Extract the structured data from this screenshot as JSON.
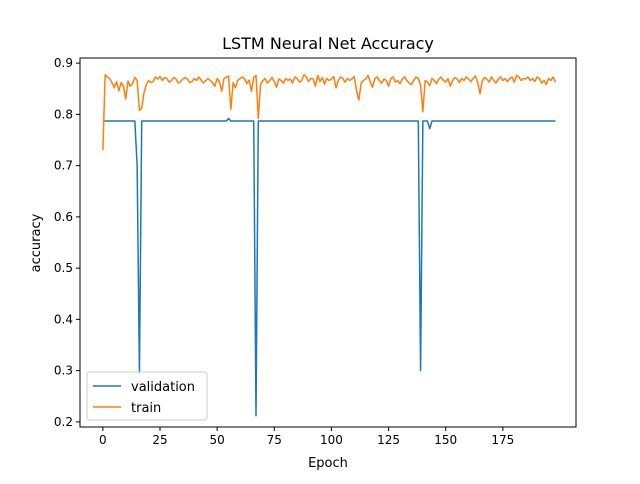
{
  "chart_data": {
    "type": "line",
    "title": "LSTM Neural Net Accuracy",
    "xlabel": "Epoch",
    "ylabel": "accuracy",
    "xlim": [
      -10,
      207
    ],
    "ylim": [
      0.19,
      0.91
    ],
    "xticks": [
      0,
      25,
      50,
      75,
      100,
      125,
      150,
      175
    ],
    "yticks": [
      0.2,
      0.3,
      0.4,
      0.5,
      0.6,
      0.7,
      0.8,
      0.9
    ],
    "xtick_labels": [
      "0",
      "25",
      "50",
      "75",
      "100",
      "125",
      "150",
      "175"
    ],
    "ytick_labels": [
      "0.2",
      "0.3",
      "0.4",
      "0.5",
      "0.6",
      "0.7",
      "0.8",
      "0.9"
    ],
    "grid": false,
    "legend_position": "lower-left",
    "series": [
      {
        "name": "validation",
        "color": "#1f77b4",
        "x": [
          0,
          1,
          14,
          15,
          16,
          17,
          18,
          54,
          55,
          56,
          66,
          67,
          68,
          69,
          138,
          139,
          140,
          141,
          142,
          143,
          144,
          145,
          198
        ],
        "y": [
          0.787,
          0.787,
          0.787,
          0.7,
          0.295,
          0.787,
          0.787,
          0.787,
          0.792,
          0.787,
          0.787,
          0.212,
          0.787,
          0.787,
          0.787,
          0.3,
          0.787,
          0.787,
          0.787,
          0.772,
          0.787,
          0.787,
          0.787
        ]
      },
      {
        "name": "train",
        "color": "#ff7f0e",
        "x": [
          0,
          1,
          2,
          3,
          4,
          5,
          6,
          7,
          8,
          9,
          10,
          11,
          12,
          13,
          14,
          15,
          16,
          17,
          18,
          19,
          20,
          21,
          22,
          23,
          24,
          25,
          26,
          27,
          28,
          29,
          30,
          31,
          32,
          33,
          34,
          35,
          36,
          37,
          38,
          39,
          40,
          41,
          42,
          43,
          44,
          45,
          46,
          47,
          48,
          49,
          50,
          51,
          52,
          53,
          54,
          55,
          56,
          57,
          58,
          59,
          60,
          61,
          62,
          63,
          64,
          65,
          66,
          67,
          68,
          69,
          70,
          71,
          72,
          73,
          74,
          75,
          76,
          77,
          78,
          79,
          80,
          81,
          82,
          83,
          84,
          85,
          86,
          87,
          88,
          89,
          90,
          91,
          92,
          93,
          94,
          95,
          96,
          97,
          98,
          99,
          100,
          101,
          102,
          103,
          104,
          105,
          106,
          107,
          108,
          109,
          110,
          111,
          112,
          113,
          114,
          115,
          116,
          117,
          118,
          119,
          120,
          121,
          122,
          123,
          124,
          125,
          126,
          127,
          128,
          129,
          130,
          131,
          132,
          133,
          134,
          135,
          136,
          137,
          138,
          139,
          140,
          141,
          142,
          143,
          144,
          145,
          146,
          147,
          148,
          149,
          150,
          151,
          152,
          153,
          154,
          155,
          156,
          157,
          158,
          159,
          160,
          161,
          162,
          163,
          164,
          165,
          166,
          167,
          168,
          169,
          170,
          171,
          172,
          173,
          174,
          175,
          176,
          177,
          178,
          179,
          180,
          181,
          182,
          183,
          184,
          185,
          186,
          187,
          188,
          189,
          190,
          191,
          192,
          193,
          194,
          195,
          196,
          197,
          198
        ],
        "y": [
          0.73,
          0.877,
          0.873,
          0.87,
          0.862,
          0.852,
          0.864,
          0.846,
          0.862,
          0.855,
          0.83,
          0.865,
          0.855,
          0.86,
          0.872,
          0.866,
          0.808,
          0.812,
          0.842,
          0.858,
          0.866,
          0.862,
          0.864,
          0.873,
          0.869,
          0.874,
          0.866,
          0.872,
          0.87,
          0.863,
          0.866,
          0.872,
          0.869,
          0.861,
          0.864,
          0.869,
          0.872,
          0.869,
          0.862,
          0.864,
          0.87,
          0.866,
          0.873,
          0.867,
          0.861,
          0.866,
          0.87,
          0.866,
          0.862,
          0.855,
          0.87,
          0.864,
          0.845,
          0.87,
          0.872,
          0.875,
          0.81,
          0.862,
          0.852,
          0.866,
          0.87,
          0.873,
          0.869,
          0.86,
          0.867,
          0.845,
          0.872,
          0.876,
          0.792,
          0.858,
          0.866,
          0.87,
          0.861,
          0.866,
          0.872,
          0.864,
          0.853,
          0.869,
          0.866,
          0.861,
          0.87,
          0.866,
          0.869,
          0.861,
          0.873,
          0.87,
          0.863,
          0.866,
          0.877,
          0.873,
          0.864,
          0.87,
          0.869,
          0.855,
          0.876,
          0.864,
          0.872,
          0.859,
          0.87,
          0.866,
          0.869,
          0.874,
          0.852,
          0.866,
          0.873,
          0.87,
          0.863,
          0.87,
          0.866,
          0.869,
          0.874,
          0.845,
          0.828,
          0.861,
          0.866,
          0.869,
          0.876,
          0.863,
          0.853,
          0.87,
          0.873,
          0.866,
          0.861,
          0.869,
          0.866,
          0.855,
          0.87,
          0.873,
          0.863,
          0.866,
          0.86,
          0.869,
          0.873,
          0.866,
          0.861,
          0.858,
          0.866,
          0.873,
          0.87,
          0.857,
          0.805,
          0.866,
          0.863,
          0.856,
          0.87,
          0.866,
          0.86,
          0.869,
          0.873,
          0.866,
          0.863,
          0.87,
          0.855,
          0.866,
          0.872,
          0.869,
          0.862,
          0.87,
          0.866,
          0.873,
          0.869,
          0.864,
          0.87,
          0.875,
          0.862,
          0.84,
          0.866,
          0.872,
          0.869,
          0.863,
          0.873,
          0.866,
          0.861,
          0.869,
          0.873,
          0.866,
          0.87,
          0.864,
          0.87,
          0.873,
          0.863,
          0.876,
          0.873,
          0.866,
          0.87,
          0.869,
          0.873,
          0.866,
          0.87,
          0.864,
          0.873,
          0.87,
          0.861,
          0.866,
          0.858,
          0.87,
          0.866,
          0.873,
          0.863
        ]
      }
    ]
  }
}
